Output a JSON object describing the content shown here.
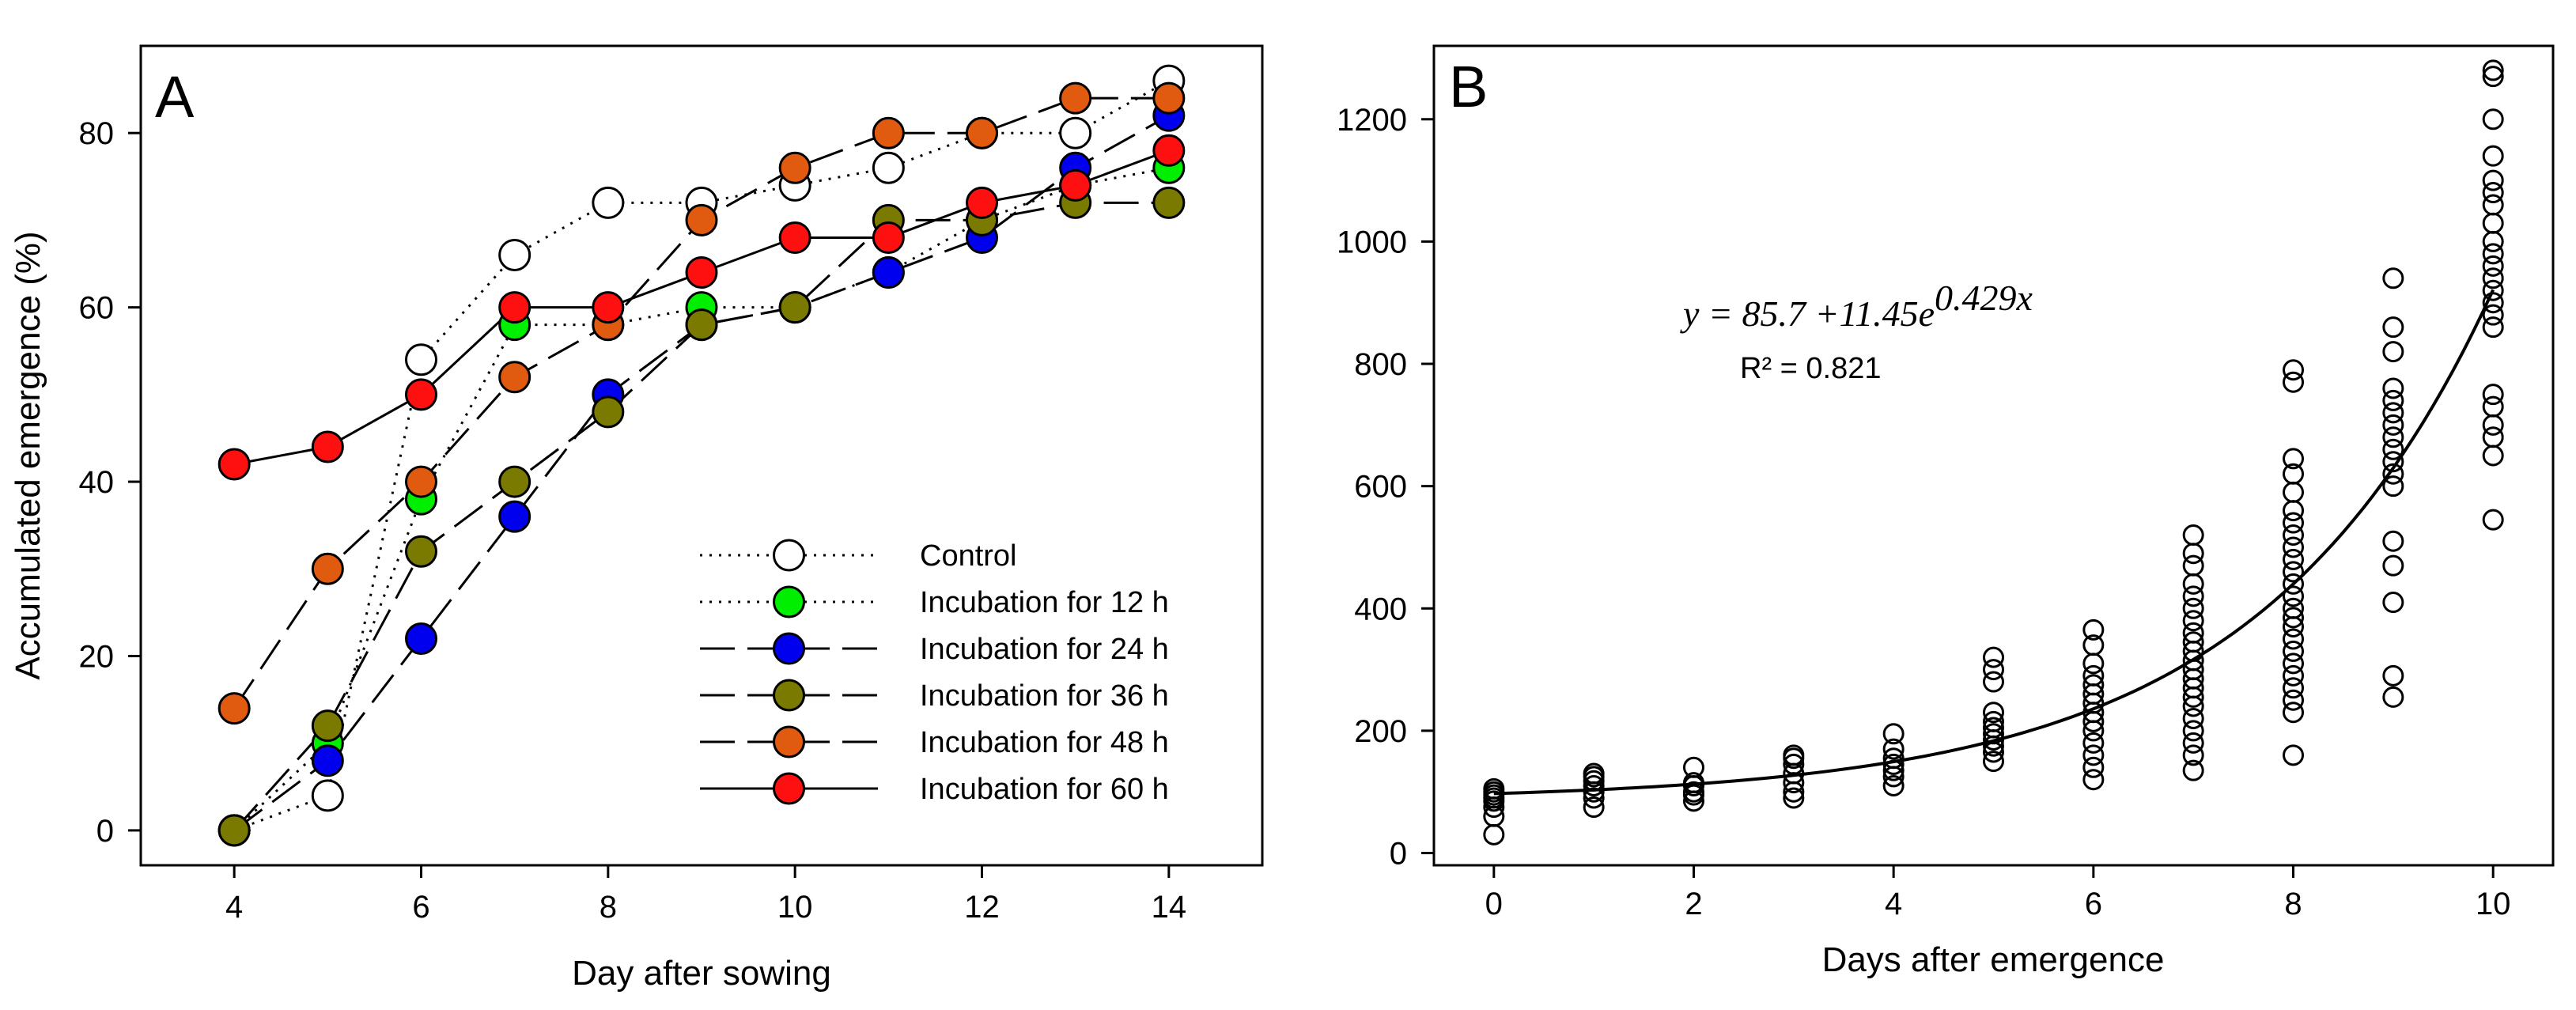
{
  "chart_data": [
    {
      "type": "line",
      "panel_label": "A",
      "xlabel": "Day after sowing",
      "ylabel": "Accumulated emergence (%)",
      "xlim": [
        3,
        15
      ],
      "ylim": [
        -4,
        90
      ],
      "xticks": [
        4,
        6,
        8,
        10,
        12,
        14
      ],
      "yticks": [
        0,
        20,
        40,
        60,
        80
      ],
      "legend_position": "bottom-right",
      "series": [
        {
          "name": "Control",
          "dash": "dotted",
          "marker_fill": "#ffffff",
          "x": [
            4,
            5,
            6,
            7,
            8,
            9,
            10,
            11,
            12,
            13,
            14
          ],
          "y": [
            0,
            4,
            54,
            66,
            72,
            72,
            74,
            76,
            80,
            80,
            86
          ]
        },
        {
          "name": "Incubation for 12 h",
          "dash": "dotted",
          "marker_fill": "#00ee00",
          "x": [
            4,
            5,
            6,
            7,
            8,
            9,
            10,
            11,
            12,
            13,
            14
          ],
          "y": [
            0,
            10,
            38,
            58,
            58,
            60,
            60,
            64,
            70,
            74,
            76
          ]
        },
        {
          "name": "Incubation for 24 h",
          "dash": "longdash",
          "marker_fill": "#0000ee",
          "x": [
            4,
            5,
            6,
            7,
            8,
            9,
            10,
            11,
            12,
            13,
            14
          ],
          "y": [
            0,
            8,
            22,
            36,
            50,
            58,
            60,
            64,
            68,
            76,
            82
          ]
        },
        {
          "name": "Incubation for 36 h",
          "dash": "longdash",
          "marker_fill": "#7a7a00",
          "x": [
            4,
            5,
            6,
            7,
            8,
            9,
            10,
            11,
            12,
            13,
            14
          ],
          "y": [
            0,
            12,
            32,
            40,
            48,
            58,
            60,
            70,
            70,
            72,
            72
          ]
        },
        {
          "name": "Incubation for 48 h",
          "dash": "longdash",
          "marker_fill": "#e05a10",
          "x": [
            4,
            5,
            6,
            7,
            8,
            9,
            10,
            11,
            12,
            13,
            14
          ],
          "y": [
            14,
            30,
            40,
            52,
            58,
            70,
            76,
            80,
            80,
            84,
            84
          ]
        },
        {
          "name": "Incubation for 60 h",
          "dash": "solid",
          "marker_fill": "#ff1010",
          "x": [
            4,
            5,
            6,
            7,
            8,
            9,
            10,
            11,
            12,
            13,
            14
          ],
          "y": [
            42,
            44,
            50,
            60,
            60,
            64,
            68,
            68,
            72,
            74,
            78
          ]
        }
      ]
    },
    {
      "type": "scatter",
      "panel_label": "B",
      "xlabel": "Days after emergence",
      "ylabel": "",
      "xlim": [
        -0.6,
        10.6
      ],
      "ylim": [
        -20,
        1320
      ],
      "xticks": [
        0,
        2,
        4,
        6,
        8,
        10
      ],
      "yticks": [
        0,
        200,
        400,
        600,
        800,
        1000,
        1200
      ],
      "equation": "y = 85.7 +11.45e",
      "equation_exponent": "0.429x",
      "r_squared": "R² = 0.821",
      "fit": {
        "a": 85.7,
        "b": 11.45,
        "c": 0.429
      },
      "points": [
        [
          0,
          30
        ],
        [
          0,
          60
        ],
        [
          0,
          75
        ],
        [
          0,
          85
        ],
        [
          0,
          90
        ],
        [
          0,
          95
        ],
        [
          0,
          100
        ],
        [
          0,
          105
        ],
        [
          1,
          75
        ],
        [
          1,
          90
        ],
        [
          1,
          100
        ],
        [
          1,
          110
        ],
        [
          1,
          118
        ],
        [
          1,
          125
        ],
        [
          1,
          130
        ],
        [
          2,
          85
        ],
        [
          2,
          95
        ],
        [
          2,
          100
        ],
        [
          2,
          110
        ],
        [
          2,
          115
        ],
        [
          2,
          140
        ],
        [
          3,
          90
        ],
        [
          3,
          100
        ],
        [
          3,
          115
        ],
        [
          3,
          130
        ],
        [
          3,
          145
        ],
        [
          3,
          155
        ],
        [
          3,
          160
        ],
        [
          4,
          110
        ],
        [
          4,
          125
        ],
        [
          4,
          135
        ],
        [
          4,
          145
        ],
        [
          4,
          155
        ],
        [
          4,
          170
        ],
        [
          4,
          195
        ],
        [
          5,
          150
        ],
        [
          5,
          165
        ],
        [
          5,
          175
        ],
        [
          5,
          185
        ],
        [
          5,
          195
        ],
        [
          5,
          205
        ],
        [
          5,
          215
        ],
        [
          5,
          230
        ],
        [
          5,
          280
        ],
        [
          5,
          300
        ],
        [
          5,
          320
        ],
        [
          6,
          120
        ],
        [
          6,
          140
        ],
        [
          6,
          160
        ],
        [
          6,
          180
        ],
        [
          6,
          200
        ],
        [
          6,
          215
        ],
        [
          6,
          230
        ],
        [
          6,
          245
        ],
        [
          6,
          260
        ],
        [
          6,
          275
        ],
        [
          6,
          290
        ],
        [
          6,
          310
        ],
        [
          6,
          340
        ],
        [
          6,
          365
        ],
        [
          7,
          135
        ],
        [
          7,
          160
        ],
        [
          7,
          180
        ],
        [
          7,
          200
        ],
        [
          7,
          220
        ],
        [
          7,
          240
        ],
        [
          7,
          255
        ],
        [
          7,
          270
        ],
        [
          7,
          285
        ],
        [
          7,
          300
        ],
        [
          7,
          315
        ],
        [
          7,
          330
        ],
        [
          7,
          345
        ],
        [
          7,
          360
        ],
        [
          7,
          380
        ],
        [
          7,
          400
        ],
        [
          7,
          420
        ],
        [
          7,
          440
        ],
        [
          7,
          470
        ],
        [
          7,
          490
        ],
        [
          7,
          520
        ],
        [
          8,
          160
        ],
        [
          8,
          230
        ],
        [
          8,
          250
        ],
        [
          8,
          270
        ],
        [
          8,
          290
        ],
        [
          8,
          310
        ],
        [
          8,
          330
        ],
        [
          8,
          350
        ],
        [
          8,
          370
        ],
        [
          8,
          385
        ],
        [
          8,
          400
        ],
        [
          8,
          420
        ],
        [
          8,
          440
        ],
        [
          8,
          460
        ],
        [
          8,
          480
        ],
        [
          8,
          500
        ],
        [
          8,
          520
        ],
        [
          8,
          540
        ],
        [
          8,
          560
        ],
        [
          8,
          590
        ],
        [
          8,
          620
        ],
        [
          8,
          645
        ],
        [
          8,
          770
        ],
        [
          8,
          790
        ],
        [
          9,
          255
        ],
        [
          9,
          290
        ],
        [
          9,
          410
        ],
        [
          9,
          470
        ],
        [
          9,
          510
        ],
        [
          9,
          600
        ],
        [
          9,
          620
        ],
        [
          9,
          640
        ],
        [
          9,
          660
        ],
        [
          9,
          680
        ],
        [
          9,
          700
        ],
        [
          9,
          720
        ],
        [
          9,
          740
        ],
        [
          9,
          760
        ],
        [
          9,
          820
        ],
        [
          9,
          860
        ],
        [
          9,
          940
        ],
        [
          10,
          545
        ],
        [
          10,
          650
        ],
        [
          10,
          680
        ],
        [
          10,
          700
        ],
        [
          10,
          730
        ],
        [
          10,
          750
        ],
        [
          10,
          860
        ],
        [
          10,
          880
        ],
        [
          10,
          900
        ],
        [
          10,
          920
        ],
        [
          10,
          940
        ],
        [
          10,
          960
        ],
        [
          10,
          980
        ],
        [
          10,
          1000
        ],
        [
          10,
          1030
        ],
        [
          10,
          1060
        ],
        [
          10,
          1080
        ],
        [
          10,
          1100
        ],
        [
          10,
          1140
        ],
        [
          10,
          1200
        ],
        [
          10,
          1270
        ],
        [
          10,
          1280
        ]
      ]
    }
  ]
}
